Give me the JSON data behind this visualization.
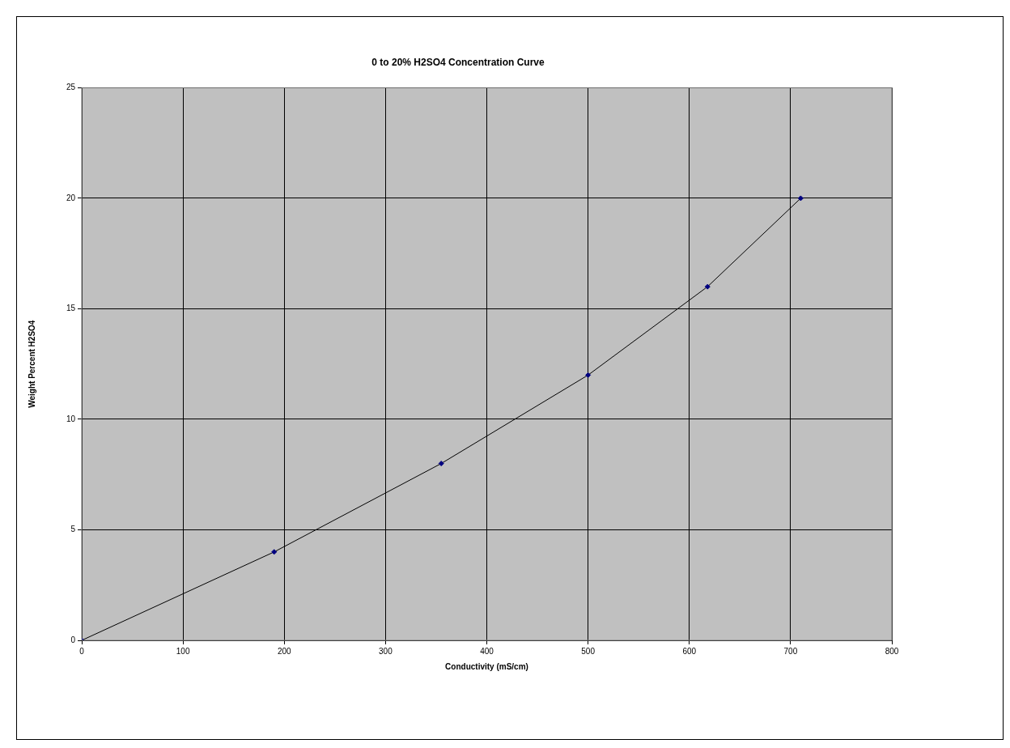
{
  "chart_data": {
    "type": "line",
    "title": "0 to 20% H2SO4 Concentration Curve",
    "xlabel": "Conductivity (mS/cm)",
    "ylabel": "Weight Percent H2SO4",
    "series": [
      {
        "color": "#000080",
        "x": [
          0,
          190,
          355,
          500,
          618,
          710
        ],
        "values": [
          0,
          4,
          8,
          12,
          16,
          20
        ]
      }
    ],
    "xlim": [
      0,
      800
    ],
    "xticks": [
      0,
      100,
      200,
      300,
      400,
      500,
      600,
      700,
      800
    ],
    "ylim": [
      0,
      25
    ],
    "yticks": [
      0,
      5,
      10,
      15,
      20,
      25
    ],
    "grid": true,
    "legend": false,
    "marker": "diamond",
    "line_style": "solid"
  }
}
